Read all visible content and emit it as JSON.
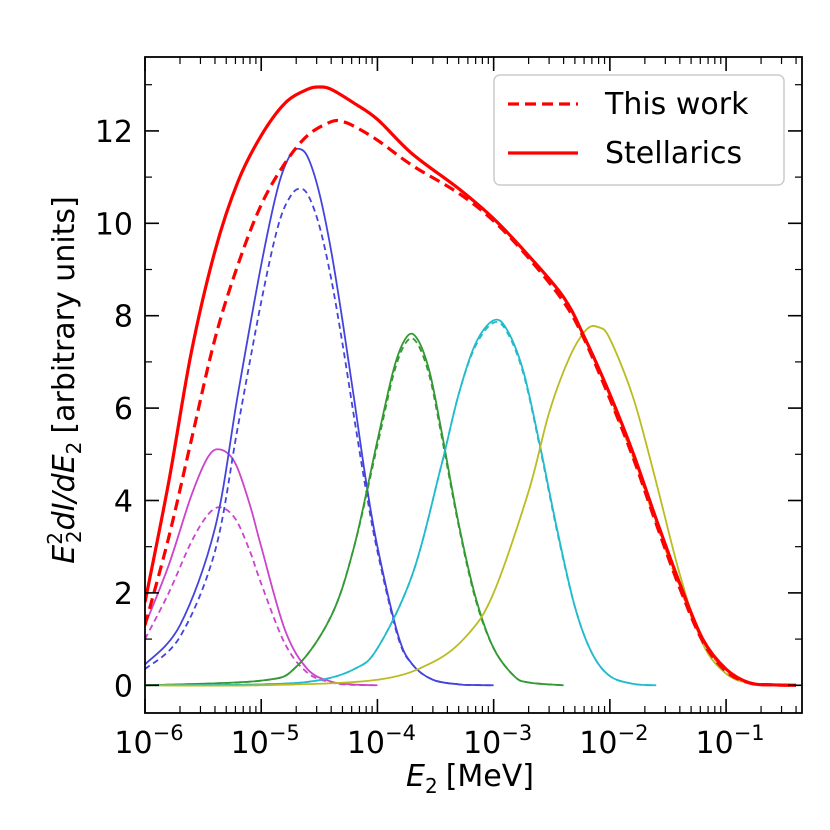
{
  "chart_data": {
    "type": "line",
    "title": "",
    "xlabel_var": "E",
    "xlabel_sub": "2",
    "xlabel_unit": "[MeV]",
    "ylabel_var": "E",
    "ylabel_sup": "2",
    "ylabel_sub": "2",
    "ylabel_mid": "dI/dE",
    "ylabel_sub2": "2",
    "ylabel_unit": "[arbitrary units]",
    "xscale": "log",
    "xlim": [
      1e-06,
      0.45
    ],
    "ylim": [
      -0.6,
      13.6
    ],
    "y_ticks": [
      0,
      2,
      4,
      6,
      8,
      10,
      12
    ],
    "x_ticks": [
      {
        "value": 1e-06,
        "base": "10",
        "exp": "−6"
      },
      {
        "value": 1e-05,
        "base": "10",
        "exp": "−5"
      },
      {
        "value": 0.0001,
        "base": "10",
        "exp": "−4"
      },
      {
        "value": 0.001,
        "base": "10",
        "exp": "−3"
      },
      {
        "value": 0.01,
        "base": "10",
        "exp": "−2"
      },
      {
        "value": 0.1,
        "base": "10",
        "exp": "−1"
      }
    ],
    "legend": {
      "position": "top-right",
      "entries": [
        {
          "label": "This work",
          "color": "#ff0000",
          "style": "dashed"
        },
        {
          "label": "Stellarics",
          "color": "#ff0000",
          "style": "solid"
        }
      ]
    },
    "series": [
      {
        "name": "Stellarics",
        "color": "#ff0000",
        "style": "solid",
        "width": 3.2,
        "x": [
          1e-06,
          1.6e-06,
          2.5e-06,
          4e-06,
          6.3e-06,
          1e-05,
          1.6e-05,
          2.5e-05,
          3.2e-05,
          4e-05,
          6.3e-05,
          0.0001,
          0.0002,
          0.0005,
          0.001,
          0.002,
          0.004,
          0.006,
          0.01,
          0.016,
          0.025,
          0.04,
          0.063,
          0.1,
          0.16,
          0.25,
          0.4
        ],
        "y": [
          1.8,
          4.4,
          7.2,
          9.4,
          10.9,
          11.9,
          12.6,
          12.9,
          12.95,
          12.9,
          12.6,
          12.25,
          11.5,
          10.75,
          10.1,
          9.3,
          8.4,
          7.55,
          6.3,
          5.0,
          3.6,
          2.2,
          1.0,
          0.35,
          0.05,
          0.01,
          0.0
        ]
      },
      {
        "name": "This work",
        "color": "#ff0000",
        "style": "dashed",
        "width": 3.2,
        "x": [
          1e-06,
          1.6e-06,
          2.5e-06,
          4e-06,
          6.3e-06,
          1e-05,
          1.6e-05,
          2.5e-05,
          4e-05,
          5e-05,
          6.3e-05,
          0.0001,
          0.0002,
          0.0005,
          0.001,
          0.002,
          0.004,
          0.006,
          0.01,
          0.016,
          0.025,
          0.04,
          0.063,
          0.1,
          0.16,
          0.25,
          0.4
        ],
        "y": [
          1.3,
          3.2,
          5.3,
          7.5,
          9.1,
          10.4,
          11.3,
          11.9,
          12.2,
          12.2,
          12.1,
          11.8,
          11.25,
          10.65,
          10.05,
          9.25,
          8.3,
          7.5,
          6.2,
          4.9,
          3.5,
          2.1,
          0.95,
          0.3,
          0.05,
          0.01,
          0.0
        ]
      },
      {
        "name": "magenta solid",
        "color": "#cc44cc",
        "style": "solid",
        "width": 1.8,
        "x": [
          1e-06,
          1.6e-06,
          2.5e-06,
          3.5e-06,
          4.5e-06,
          6e-06,
          8e-06,
          1e-05,
          1.6e-05,
          2.5e-05,
          4e-05,
          6e-05,
          0.0001
        ],
        "y": [
          1.3,
          2.6,
          4.1,
          4.95,
          5.1,
          4.8,
          3.9,
          3.0,
          1.2,
          0.35,
          0.08,
          0.02,
          0.0
        ]
      },
      {
        "name": "magenta dashed",
        "color": "#cc44cc",
        "style": "dashed",
        "width": 1.8,
        "x": [
          1e-06,
          1.6e-06,
          2.5e-06,
          3.5e-06,
          4.5e-06,
          6e-06,
          8e-06,
          1e-05,
          1.6e-05,
          2.5e-05,
          4e-05,
          6e-05,
          0.0001
        ],
        "y": [
          1.0,
          2.0,
          3.1,
          3.7,
          3.85,
          3.6,
          2.9,
          2.2,
          0.9,
          0.27,
          0.06,
          0.01,
          0.0
        ]
      },
      {
        "name": "blue solid",
        "color": "#4444dd",
        "style": "solid",
        "width": 1.8,
        "x": [
          1e-06,
          2e-06,
          4e-06,
          6.3e-06,
          1e-05,
          1.4e-05,
          1.8e-05,
          2.2e-05,
          2.6e-05,
          3.2e-05,
          4e-05,
          5e-05,
          6.3e-05,
          8e-05,
          0.0001,
          0.00015,
          0.0002,
          0.0003,
          0.0005,
          0.0007,
          0.001
        ],
        "y": [
          0.45,
          1.3,
          3.4,
          6.3,
          9.1,
          10.8,
          11.5,
          11.6,
          11.35,
          10.6,
          9.4,
          7.9,
          6.2,
          4.4,
          3.0,
          1.1,
          0.45,
          0.12,
          0.02,
          0.005,
          0.0
        ]
      },
      {
        "name": "blue dashed",
        "color": "#4444dd",
        "style": "dashed",
        "width": 1.8,
        "x": [
          1e-06,
          2e-06,
          4e-06,
          6.3e-06,
          1e-05,
          1.4e-05,
          1.8e-05,
          2.2e-05,
          2.6e-05,
          3.2e-05,
          4e-05,
          5e-05,
          6.3e-05,
          8e-05,
          0.0001,
          0.00015,
          0.0002,
          0.0003,
          0.0005,
          0.0007,
          0.001
        ],
        "y": [
          0.35,
          1.05,
          2.9,
          5.6,
          8.3,
          9.95,
          10.6,
          10.75,
          10.55,
          9.9,
          8.8,
          7.4,
          5.8,
          4.2,
          2.9,
          1.05,
          0.45,
          0.12,
          0.02,
          0.005,
          0.0
        ]
      },
      {
        "name": "green solid",
        "color": "#339933",
        "style": "solid",
        "width": 1.8,
        "x": [
          1e-06,
          1e-05,
          2e-05,
          4e-05,
          6.3e-05,
          0.0001,
          0.00014,
          0.00018,
          0.00022,
          0.00028,
          0.00035,
          0.0005,
          0.0007,
          0.001,
          0.0015,
          0.002,
          0.004
        ],
        "y": [
          0.0,
          0.1,
          0.4,
          1.5,
          3.0,
          5.3,
          6.9,
          7.55,
          7.5,
          6.8,
          5.6,
          3.5,
          1.9,
          0.8,
          0.2,
          0.06,
          0.0
        ]
      },
      {
        "name": "green dashed",
        "color": "#339933",
        "style": "dashed",
        "width": 1.8,
        "x": [
          1e-06,
          1e-05,
          2e-05,
          4e-05,
          6.3e-05,
          0.0001,
          0.00014,
          0.00018,
          0.00022,
          0.00028,
          0.00035,
          0.0005,
          0.0007,
          0.001,
          0.0015,
          0.002,
          0.004
        ],
        "y": [
          0.0,
          0.1,
          0.4,
          1.5,
          3.0,
          5.2,
          6.8,
          7.45,
          7.4,
          6.7,
          5.5,
          3.45,
          1.85,
          0.8,
          0.2,
          0.06,
          0.0
        ]
      },
      {
        "name": "cyan solid",
        "color": "#22bbcc",
        "style": "solid",
        "width": 1.8,
        "x": [
          1e-06,
          1e-05,
          3e-05,
          6.3e-05,
          0.0001,
          0.0002,
          0.00035,
          0.0005,
          0.0007,
          0.001,
          0.0013,
          0.0018,
          0.0025,
          0.0035,
          0.005,
          0.007,
          0.01,
          0.016,
          0.025
        ],
        "y": [
          0.0,
          0.02,
          0.1,
          0.35,
          0.8,
          2.4,
          4.7,
          6.3,
          7.4,
          7.9,
          7.7,
          6.8,
          5.2,
          3.4,
          1.7,
          0.7,
          0.2,
          0.03,
          0.0
        ]
      },
      {
        "name": "cyan dashed",
        "color": "#22bbcc",
        "style": "dashed",
        "width": 1.8,
        "x": [
          1e-06,
          1e-05,
          3e-05,
          6.3e-05,
          0.0001,
          0.0002,
          0.00035,
          0.0005,
          0.0007,
          0.001,
          0.0013,
          0.0018,
          0.0025,
          0.0035,
          0.005,
          0.007,
          0.01,
          0.016,
          0.025
        ],
        "y": [
          0.0,
          0.02,
          0.1,
          0.35,
          0.8,
          2.4,
          4.7,
          6.3,
          7.35,
          7.85,
          7.65,
          6.75,
          5.15,
          3.35,
          1.7,
          0.7,
          0.2,
          0.03,
          0.0
        ]
      },
      {
        "name": "yellow solid",
        "color": "#bbbb22",
        "style": "solid",
        "width": 1.8,
        "x": [
          1e-06,
          1e-05,
          0.0001,
          0.0003,
          0.0006,
          0.001,
          0.002,
          0.003,
          0.0045,
          0.0063,
          0.008,
          0.01,
          0.016,
          0.025,
          0.04,
          0.063,
          0.1,
          0.16,
          0.25,
          0.4
        ],
        "y": [
          0.0,
          0.0,
          0.12,
          0.5,
          1.1,
          2.0,
          4.2,
          5.9,
          7.1,
          7.7,
          7.75,
          7.5,
          6.2,
          4.4,
          2.4,
          0.9,
          0.25,
          0.04,
          0.01,
          0.0
        ]
      },
      {
        "name": "orange dashed",
        "color": "#ff8800",
        "style": "dashed",
        "width": 1.6,
        "x": [
          0.01,
          0.016,
          0.025,
          0.04,
          0.063,
          0.1,
          0.16,
          0.25,
          0.4
        ],
        "y": [
          6.2,
          4.9,
          3.5,
          2.1,
          0.95,
          0.3,
          0.05,
          0.01,
          0.0
        ]
      }
    ]
  }
}
